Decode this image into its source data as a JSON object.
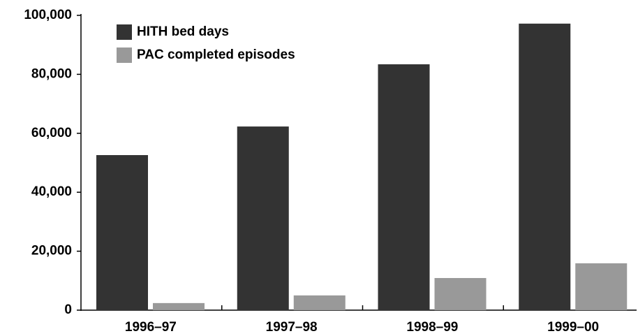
{
  "chart_data": {
    "type": "bar",
    "categories": [
      "1996–97",
      "1997–98",
      "1998–99",
      "1999–00"
    ],
    "series": [
      {
        "name": "HITH bed days",
        "color": "#333333",
        "values": [
          52600,
          62300,
          83400,
          97200
        ]
      },
      {
        "name": "PAC completed episodes",
        "color": "#999999",
        "values": [
          2400,
          5000,
          10900,
          15900
        ]
      }
    ],
    "ylim": [
      0,
      100000
    ],
    "yticks": [
      0,
      {
        "value": 20000,
        "label": "20,000"
      },
      {
        "value": 40000,
        "label": "40,000"
      },
      {
        "value": 60000,
        "label": "60,000"
      },
      {
        "value": 80000,
        "label": "80,000"
      },
      {
        "value": 100000,
        "label": "100,000"
      }
    ],
    "legend": "upper left"
  }
}
